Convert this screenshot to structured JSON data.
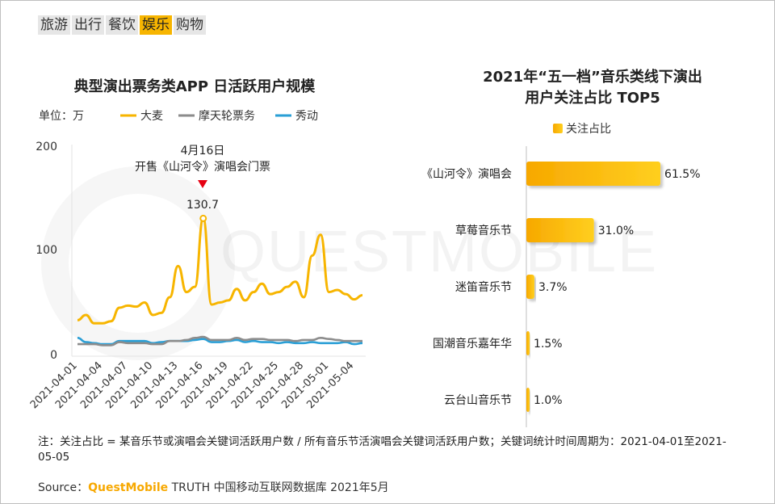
{
  "tabs": [
    {
      "label": "旅游",
      "active": false
    },
    {
      "label": "出行",
      "active": false
    },
    {
      "label": "餐饮",
      "active": false
    },
    {
      "label": "娱乐",
      "active": true
    },
    {
      "label": "购物",
      "active": false
    }
  ],
  "watermark": "QUESTMOBILE",
  "colors": {
    "accent": "#f7b500",
    "series1": "#f7b500",
    "series2": "#8c8c8c",
    "series3": "#2a9fd6",
    "marker": "#e60012"
  },
  "chart_data": [
    {
      "type": "line",
      "title": "典型演出票务类APP 日活跃用户规模",
      "unit_label": "单位：万",
      "ylim": [
        0,
        200
      ],
      "yticks": [
        "0",
        "100",
        "200"
      ],
      "x": [
        "2021-04-01",
        "2021-04-02",
        "2021-04-03",
        "2021-04-04",
        "2021-04-05",
        "2021-04-06",
        "2021-04-07",
        "2021-04-08",
        "2021-04-09",
        "2021-04-10",
        "2021-04-11",
        "2021-04-12",
        "2021-04-13",
        "2021-04-14",
        "2021-04-15",
        "2021-04-16",
        "2021-04-17",
        "2021-04-18",
        "2021-04-19",
        "2021-04-20",
        "2021-04-21",
        "2021-04-22",
        "2021-04-23",
        "2021-04-24",
        "2021-04-25",
        "2021-04-26",
        "2021-04-27",
        "2021-04-28",
        "2021-04-29",
        "2021-04-30",
        "2021-05-01",
        "2021-05-02",
        "2021-05-03",
        "2021-05-04",
        "2021-05-05"
      ],
      "xtick_labels": [
        "2021-04-01",
        "2021-04-04",
        "2021-04-07",
        "2021-04-10",
        "2021-04-13",
        "2021-04-16",
        "2021-04-19",
        "2021-04-22",
        "2021-04-25",
        "2021-04-28",
        "2021-05-01",
        "2021-05-04"
      ],
      "xtick_index": [
        0,
        3,
        6,
        9,
        12,
        15,
        18,
        21,
        24,
        27,
        30,
        33
      ],
      "series": [
        {
          "name": "大麦",
          "values": [
            33,
            38,
            30,
            30,
            32,
            45,
            47,
            46,
            50,
            38,
            40,
            55,
            85,
            60,
            65,
            130.7,
            48,
            50,
            52,
            63,
            52,
            60,
            68,
            58,
            60,
            65,
            70,
            55,
            95,
            115,
            60,
            62,
            58,
            53,
            57
          ]
        },
        {
          "name": "摩天轮票务",
          "values": [
            10,
            10,
            10,
            9,
            9,
            12,
            11,
            11,
            11,
            10,
            10,
            13,
            13,
            14,
            16,
            17,
            14,
            14,
            14,
            16,
            14,
            15,
            15,
            14,
            14,
            14,
            13,
            14,
            14,
            16,
            15,
            14,
            13,
            13,
            13
          ]
        },
        {
          "name": "秀动",
          "values": [
            16,
            12,
            11,
            10,
            10,
            13,
            13,
            13,
            13,
            11,
            12,
            13,
            13,
            13,
            14,
            15,
            12,
            12,
            13,
            14,
            12,
            13,
            12,
            12,
            11,
            12,
            11,
            11,
            12,
            11,
            11,
            11,
            12,
            10,
            11
          ]
        }
      ],
      "annotation": {
        "date": "4月16日",
        "text": "开售《山河令》演唱会门票",
        "peak_label": "130.7",
        "peak_index": 15
      }
    },
    {
      "type": "bar",
      "orientation": "horizontal",
      "title": "2021年“五一档”音乐类线下演出",
      "title_line2": "用户关注占比 TOP5",
      "legend": "关注占比",
      "xlim": [
        0,
        100
      ],
      "categories": [
        "《山河令》演唱会",
        "草莓音乐节",
        "迷笛音乐节",
        "国潮音乐嘉年华",
        "云台山音乐节"
      ],
      "values": [
        61.5,
        31.0,
        3.7,
        1.5,
        1.0
      ],
      "value_labels": [
        "61.5%",
        "31.0%",
        "3.7%",
        "1.5%",
        "1.0%"
      ]
    }
  ],
  "note": "注：关注占比 = 某音乐节或演唱会关键词活跃用户数 / 所有音乐节活演唱会关键词活跃用户数；关键词统计时间周期为：2021-04-01至2021-05-05",
  "source": {
    "prefix": "Source：",
    "brand": "QuestMobile",
    "suffix": " TRUTH 中国移动互联网数据库 2021年5月"
  }
}
